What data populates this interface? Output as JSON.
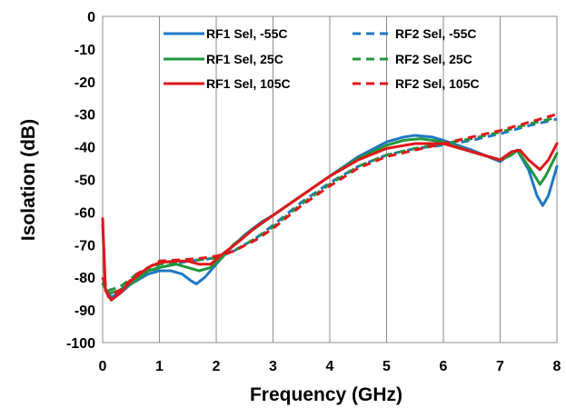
{
  "chart_data": {
    "type": "line",
    "title": "",
    "xlabel": "Frequency (GHz)",
    "ylabel": "Isolation (dB)",
    "xlim": [
      0,
      8
    ],
    "ylim": [
      -100,
      0
    ],
    "x_ticks": [
      "0",
      "1",
      "2",
      "3",
      "4",
      "5",
      "6",
      "7",
      "8"
    ],
    "y_ticks": [
      "0",
      "-10",
      "-20",
      "-30",
      "-40",
      "-50",
      "-60",
      "-70",
      "-80",
      "-90",
      "-100"
    ],
    "grid": "vertical",
    "legend_position": "top",
    "series": [
      {
        "name": "RF1 Sel, -55C",
        "color": "#1f77c4",
        "dash": "solid",
        "points": [
          [
            0.0,
            -64
          ],
          [
            0.05,
            -84
          ],
          [
            0.15,
            -86
          ],
          [
            0.3,
            -85
          ],
          [
            0.5,
            -82
          ],
          [
            0.8,
            -79
          ],
          [
            1.0,
            -78
          ],
          [
            1.2,
            -78
          ],
          [
            1.4,
            -79
          ],
          [
            1.55,
            -81
          ],
          [
            1.65,
            -82
          ],
          [
            1.8,
            -80
          ],
          [
            2.0,
            -76
          ],
          [
            2.2,
            -72
          ],
          [
            2.5,
            -67
          ],
          [
            2.8,
            -63
          ],
          [
            3.0,
            -61
          ],
          [
            3.5,
            -55
          ],
          [
            4.0,
            -49
          ],
          [
            4.5,
            -43
          ],
          [
            5.0,
            -38.5
          ],
          [
            5.3,
            -37
          ],
          [
            5.5,
            -36.5
          ],
          [
            5.8,
            -37
          ],
          [
            6.0,
            -38
          ],
          [
            6.5,
            -41
          ],
          [
            7.0,
            -44.5
          ],
          [
            7.2,
            -42
          ],
          [
            7.3,
            -41
          ],
          [
            7.5,
            -47
          ],
          [
            7.65,
            -55
          ],
          [
            7.75,
            -58
          ],
          [
            7.85,
            -55
          ],
          [
            8.0,
            -46
          ]
        ]
      },
      {
        "name": "RF2 Sel, -55C",
        "color": "#1f77c4",
        "dash": "dashed",
        "points": [
          [
            0.0,
            -80
          ],
          [
            0.1,
            -85
          ],
          [
            0.3,
            -84
          ],
          [
            0.6,
            -80
          ],
          [
            1.0,
            -77
          ],
          [
            1.5,
            -75
          ],
          [
            1.8,
            -74.5
          ],
          [
            2.0,
            -74
          ],
          [
            2.3,
            -72
          ],
          [
            2.7,
            -68
          ],
          [
            3.0,
            -64
          ],
          [
            3.5,
            -57
          ],
          [
            4.0,
            -51
          ],
          [
            4.5,
            -46
          ],
          [
            5.0,
            -42.5
          ],
          [
            5.5,
            -40.5
          ],
          [
            6.0,
            -39.5
          ],
          [
            6.5,
            -38
          ],
          [
            7.0,
            -36
          ],
          [
            7.5,
            -33.5
          ],
          [
            8.0,
            -31.5
          ]
        ]
      },
      {
        "name": "RF1 Sel, 25C",
        "color": "#22963c",
        "dash": "solid",
        "points": [
          [
            0.0,
            -82
          ],
          [
            0.1,
            -85
          ],
          [
            0.3,
            -84
          ],
          [
            0.5,
            -82
          ],
          [
            0.8,
            -78
          ],
          [
            1.0,
            -77
          ],
          [
            1.3,
            -76
          ],
          [
            1.5,
            -77
          ],
          [
            1.7,
            -78
          ],
          [
            1.9,
            -77
          ],
          [
            2.1,
            -74
          ],
          [
            2.3,
            -70
          ],
          [
            2.6,
            -66
          ],
          [
            3.0,
            -61
          ],
          [
            3.5,
            -55
          ],
          [
            4.0,
            -49
          ],
          [
            4.5,
            -43.5
          ],
          [
            5.0,
            -39.5
          ],
          [
            5.3,
            -38
          ],
          [
            5.6,
            -37.5
          ],
          [
            6.0,
            -38.5
          ],
          [
            6.5,
            -41.5
          ],
          [
            7.0,
            -44
          ],
          [
            7.2,
            -42.5
          ],
          [
            7.3,
            -41
          ],
          [
            7.5,
            -46
          ],
          [
            7.65,
            -50
          ],
          [
            7.7,
            -51.5
          ],
          [
            7.8,
            -49
          ],
          [
            8.0,
            -42
          ]
        ]
      },
      {
        "name": "RF2 Sel, 25C",
        "color": "#22963c",
        "dash": "dashed",
        "points": [
          [
            0.0,
            -80
          ],
          [
            0.1,
            -84
          ],
          [
            0.3,
            -83
          ],
          [
            0.6,
            -79
          ],
          [
            1.0,
            -76
          ],
          [
            1.5,
            -75
          ],
          [
            2.0,
            -74
          ],
          [
            2.3,
            -72
          ],
          [
            2.7,
            -68
          ],
          [
            3.0,
            -64.5
          ],
          [
            3.5,
            -57.5
          ],
          [
            4.0,
            -51.5
          ],
          [
            4.5,
            -46
          ],
          [
            5.0,
            -42.5
          ],
          [
            5.5,
            -40.5
          ],
          [
            6.0,
            -39
          ],
          [
            6.5,
            -37.5
          ],
          [
            7.0,
            -35.5
          ],
          [
            7.5,
            -33
          ],
          [
            8.0,
            -31
          ]
        ]
      },
      {
        "name": "RF1 Sel, 105C",
        "color": "#e0161b",
        "dash": "solid",
        "points": [
          [
            0.0,
            -62
          ],
          [
            0.05,
            -84
          ],
          [
            0.15,
            -87
          ],
          [
            0.3,
            -85
          ],
          [
            0.5,
            -81
          ],
          [
            0.8,
            -77
          ],
          [
            1.0,
            -75.5
          ],
          [
            1.3,
            -75
          ],
          [
            1.5,
            -75
          ],
          [
            1.7,
            -76
          ],
          [
            1.9,
            -76
          ],
          [
            2.1,
            -73
          ],
          [
            2.4,
            -69
          ],
          [
            2.7,
            -64.5
          ],
          [
            3.0,
            -61
          ],
          [
            3.5,
            -55
          ],
          [
            4.0,
            -49
          ],
          [
            4.5,
            -44
          ],
          [
            5.0,
            -40.5
          ],
          [
            5.5,
            -39
          ],
          [
            6.0,
            -39
          ],
          [
            6.5,
            -41.5
          ],
          [
            7.0,
            -44
          ],
          [
            7.2,
            -41.5
          ],
          [
            7.35,
            -41
          ],
          [
            7.5,
            -44
          ],
          [
            7.7,
            -47
          ],
          [
            7.85,
            -44
          ],
          [
            8.0,
            -39
          ]
        ]
      },
      {
        "name": "RF2 Sel, 105C",
        "color": "#e0161b",
        "dash": "dashed",
        "points": [
          [
            0.0,
            -80
          ],
          [
            0.1,
            -86
          ],
          [
            0.3,
            -84
          ],
          [
            0.6,
            -79
          ],
          [
            1.0,
            -75
          ],
          [
            1.5,
            -74.5
          ],
          [
            1.8,
            -74
          ],
          [
            2.0,
            -73.5
          ],
          [
            2.3,
            -72
          ],
          [
            2.7,
            -68.5
          ],
          [
            3.0,
            -65
          ],
          [
            3.5,
            -58
          ],
          [
            4.0,
            -52
          ],
          [
            4.5,
            -46.5
          ],
          [
            5.0,
            -43
          ],
          [
            5.5,
            -41
          ],
          [
            6.0,
            -39
          ],
          [
            6.5,
            -37
          ],
          [
            7.0,
            -35
          ],
          [
            7.5,
            -32.5
          ],
          [
            8.0,
            -30
          ]
        ]
      }
    ]
  }
}
